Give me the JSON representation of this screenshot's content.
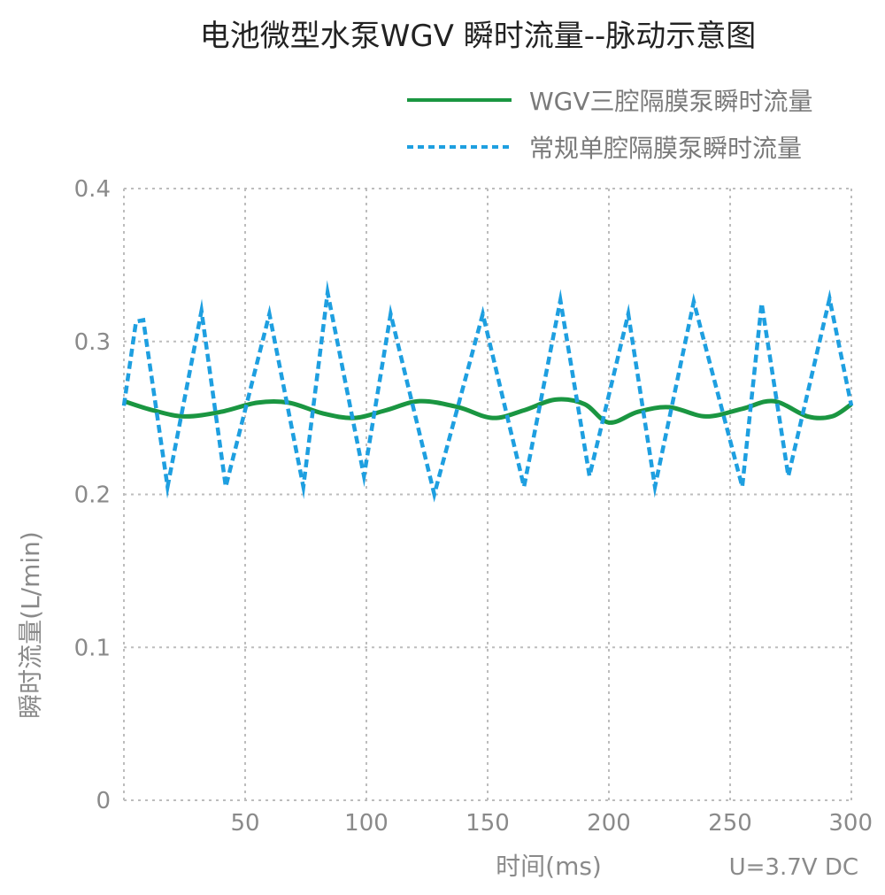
{
  "chart_data": {
    "type": "line",
    "title": "电池微型水泵WGV 瞬时流量--脉动示意图",
    "xlabel": "时间(ms)",
    "ylabel": "瞬时流量(L/min)",
    "note": "U=3.7V DC",
    "xlim": [
      0,
      300
    ],
    "ylim": [
      0,
      0.4
    ],
    "x_ticks": [
      0,
      50,
      100,
      150,
      200,
      250,
      300
    ],
    "x_tick_labels": [
      "",
      "50",
      "100",
      "150",
      "200",
      "250",
      "300"
    ],
    "y_ticks": [
      0,
      0.1,
      0.2,
      0.3,
      0.4
    ],
    "y_tick_labels": [
      "0",
      "0.1",
      "0.2",
      "0.3",
      "0.4"
    ],
    "grid": true,
    "legend_position": "top-right",
    "series": [
      {
        "name": "WGV三腔隔膜泵瞬时流量",
        "color": "#1a9641",
        "style": "solid",
        "x": [
          0,
          12,
          25,
          40,
          55,
          68,
          82,
          95,
          108,
          122,
          138,
          152,
          165,
          178,
          190,
          200,
          212,
          225,
          240,
          255,
          268,
          282,
          292,
          300
        ],
        "y": [
          0.261,
          0.255,
          0.251,
          0.254,
          0.26,
          0.26,
          0.253,
          0.25,
          0.255,
          0.261,
          0.257,
          0.25,
          0.255,
          0.262,
          0.259,
          0.247,
          0.254,
          0.257,
          0.251,
          0.256,
          0.261,
          0.251,
          0.251,
          0.259
        ]
      },
      {
        "name": "常规单腔隔膜泵瞬时流量",
        "color": "#1e9fe0",
        "style": "dashed",
        "x": [
          0,
          5,
          8,
          18,
          32,
          42,
          60,
          74,
          84,
          99,
          110,
          128,
          148,
          165,
          180,
          192,
          208,
          219,
          235,
          255,
          263,
          274,
          291,
          300
        ],
        "y": [
          0.258,
          0.313,
          0.314,
          0.205,
          0.32,
          0.205,
          0.318,
          0.205,
          0.332,
          0.212,
          0.318,
          0.2,
          0.318,
          0.205,
          0.327,
          0.212,
          0.318,
          0.205,
          0.326,
          0.205,
          0.325,
          0.212,
          0.328,
          0.258
        ]
      }
    ]
  }
}
